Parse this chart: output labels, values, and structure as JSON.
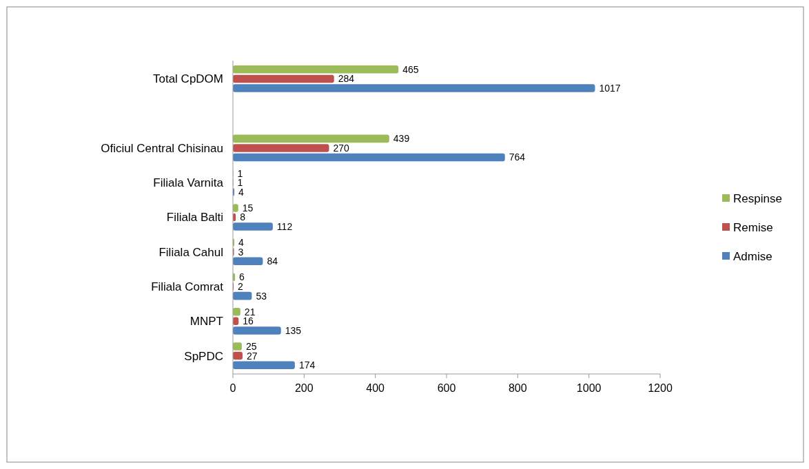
{
  "chart_data": {
    "type": "bar",
    "orientation": "horizontal",
    "categories": [
      "Total CpDOM",
      null,
      "Oficiul Central Chisinau",
      "Filiala Varnita",
      "Filiala Balti",
      "Filiala Cahul",
      "Filiala Comrat",
      "MNPT",
      "SpPDC"
    ],
    "series": [
      {
        "name": "Respinse",
        "color": "#9bbb59",
        "values": [
          465,
          null,
          439,
          1,
          15,
          4,
          6,
          21,
          25
        ]
      },
      {
        "name": "Remise",
        "color": "#c0504d",
        "values": [
          284,
          null,
          270,
          1,
          8,
          3,
          2,
          16,
          27
        ]
      },
      {
        "name": "Admise",
        "color": "#4f81bd",
        "values": [
          1017,
          null,
          764,
          4,
          112,
          84,
          53,
          135,
          174
        ]
      }
    ],
    "xlim": [
      0,
      1200
    ],
    "xticks": [
      0,
      200,
      400,
      600,
      800,
      1000,
      1200
    ],
    "data_labels": true,
    "legend": "right",
    "grid": false
  }
}
